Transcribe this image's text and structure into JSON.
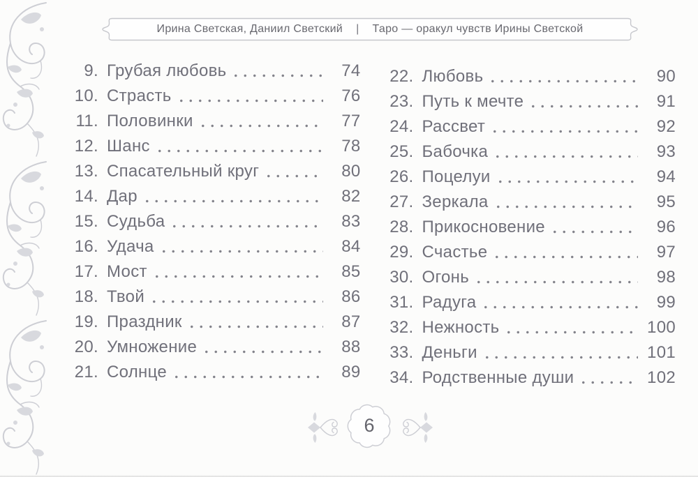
{
  "header": {
    "authors": "Ирина Светская, Даниил Светский",
    "separator": "|",
    "book_title": "Таро — оракул чувств Ирины Светской"
  },
  "toc": {
    "left_column": [
      {
        "num": "9.",
        "title": "Грубая любовь",
        "page": "74"
      },
      {
        "num": "10.",
        "title": "Страсть",
        "page": "76"
      },
      {
        "num": "11.",
        "title": "Половинки",
        "page": "77"
      },
      {
        "num": "12.",
        "title": "Шанс",
        "page": "78"
      },
      {
        "num": "13.",
        "title": "Спасательный круг",
        "page": "80"
      },
      {
        "num": "14.",
        "title": "Дар",
        "page": "82"
      },
      {
        "num": "15.",
        "title": "Судьба",
        "page": "83"
      },
      {
        "num": "16.",
        "title": "Удача",
        "page": "84"
      },
      {
        "num": "17.",
        "title": "Мост",
        "page": "85"
      },
      {
        "num": "18.",
        "title": "Твой",
        "page": "86"
      },
      {
        "num": "19.",
        "title": "Праздник",
        "page": "87"
      },
      {
        "num": "20.",
        "title": "Умножение",
        "page": "88"
      },
      {
        "num": "21.",
        "title": "Солнце",
        "page": "89"
      }
    ],
    "right_column": [
      {
        "num": "22.",
        "title": "Любовь",
        "page": "90"
      },
      {
        "num": "23.",
        "title": "Путь к мечте",
        "page": "91"
      },
      {
        "num": "24.",
        "title": "Рассвет",
        "page": "92"
      },
      {
        "num": "25.",
        "title": "Бабочка",
        "page": "93"
      },
      {
        "num": "26.",
        "title": "Поцелуи",
        "page": "94"
      },
      {
        "num": "27.",
        "title": "Зеркала",
        "page": "95"
      },
      {
        "num": "28.",
        "title": "Прикосновение",
        "page": "96"
      },
      {
        "num": "29.",
        "title": "Счастье",
        "page": "97"
      },
      {
        "num": "30.",
        "title": "Огонь",
        "page": "98"
      },
      {
        "num": "31.",
        "title": "Радуга",
        "page": "99"
      },
      {
        "num": "32.",
        "title": "Нежность",
        "page": "100"
      },
      {
        "num": "33.",
        "title": "Деньги",
        "page": "101"
      },
      {
        "num": "34.",
        "title": "Родственные души",
        "page": "102"
      }
    ]
  },
  "footer": {
    "page_number": "6"
  },
  "colors": {
    "text": "#70707a",
    "dots": "#82828a",
    "ornament": "#cdced4",
    "ornament-fill": "#d8d9de",
    "outline": "#c6c7cc",
    "badge-text": "#64646c"
  }
}
